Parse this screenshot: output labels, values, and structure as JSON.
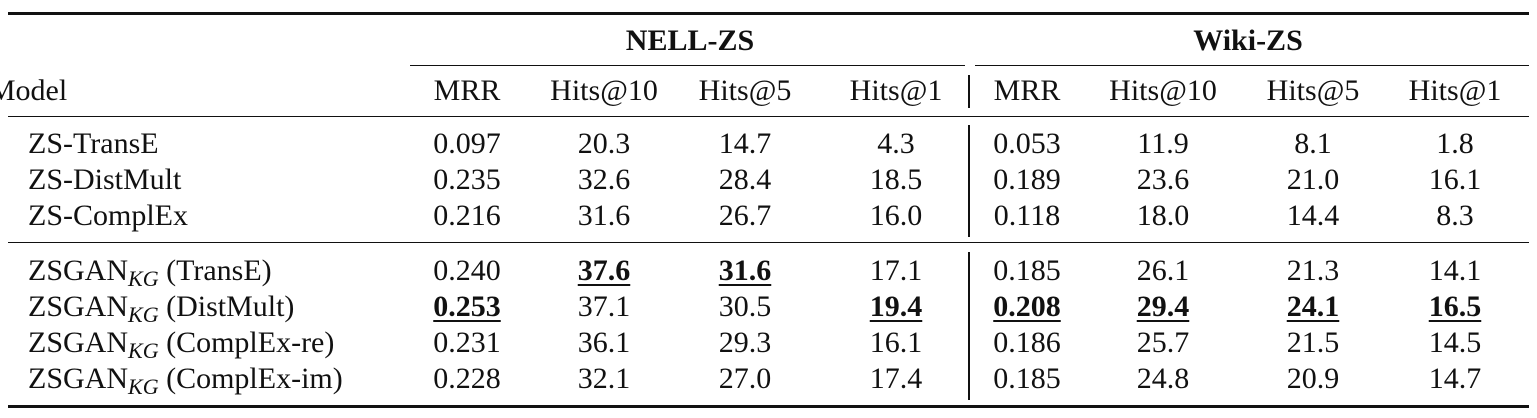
{
  "groups": {
    "nell": "NELL-ZS",
    "wiki": "Wiki-ZS"
  },
  "columns": [
    "Model",
    "MRR",
    "Hits@10",
    "Hits@5",
    "Hits@1",
    "MRR",
    "Hits@10",
    "Hits@5",
    "Hits@1"
  ],
  "rows": [
    {
      "model": "ZS-TransE",
      "sub": "",
      "suffix": "",
      "values": [
        "0.097",
        "20.3",
        "14.7",
        "4.3",
        "0.053",
        "11.9",
        "8.1",
        "1.8"
      ],
      "best": []
    },
    {
      "model": "ZS-DistMult",
      "sub": "",
      "suffix": "",
      "values": [
        "0.235",
        "32.6",
        "28.4",
        "18.5",
        "0.189",
        "23.6",
        "21.0",
        "16.1"
      ],
      "best": []
    },
    {
      "model": "ZS-ComplEx",
      "sub": "",
      "suffix": "",
      "values": [
        "0.216",
        "31.6",
        "26.7",
        "16.0",
        "0.118",
        "18.0",
        "14.4",
        "8.3"
      ],
      "best": []
    },
    {
      "model": "ZSGAN",
      "sub": "KG",
      "suffix": " (TransE)",
      "values": [
        "0.240",
        "37.6",
        "31.6",
        "17.1",
        "0.185",
        "26.1",
        "21.3",
        "14.1"
      ],
      "best": [
        1,
        2
      ]
    },
    {
      "model": "ZSGAN",
      "sub": "KG",
      "suffix": " (DistMult)",
      "values": [
        "0.253",
        "37.1",
        "30.5",
        "19.4",
        "0.208",
        "29.4",
        "24.1",
        "16.5"
      ],
      "best": [
        0,
        3,
        4,
        5,
        6,
        7
      ]
    },
    {
      "model": "ZSGAN",
      "sub": "KG",
      "suffix": " (ComplEx-re)",
      "values": [
        "0.231",
        "36.1",
        "29.3",
        "16.1",
        "0.186",
        "25.7",
        "21.5",
        "14.5"
      ],
      "best": []
    },
    {
      "model": "ZSGAN",
      "sub": "KG",
      "suffix": " (ComplEx-im)",
      "values": [
        "0.228",
        "32.1",
        "27.0",
        "17.4",
        "0.185",
        "24.8",
        "20.9",
        "14.7"
      ],
      "best": []
    }
  ]
}
